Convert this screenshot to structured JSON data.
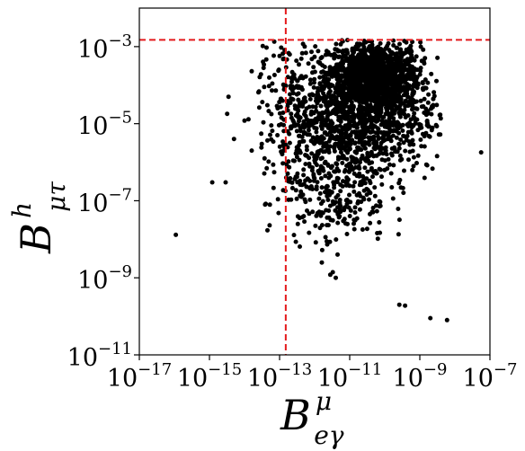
{
  "chart_data": {
    "type": "scatter",
    "x_scale": "log",
    "y_scale": "log",
    "xlim": [
      1e-17,
      1e-07
    ],
    "ylim": [
      1e-11,
      0.01
    ],
    "x_ticks": [
      {
        "base": "10",
        "exp": "−17",
        "value": 1e-17
      },
      {
        "base": "10",
        "exp": "−15",
        "value": 1e-15
      },
      {
        "base": "10",
        "exp": "−13",
        "value": 1e-13
      },
      {
        "base": "10",
        "exp": "−11",
        "value": 1e-11
      },
      {
        "base": "10",
        "exp": "−9",
        "value": 1e-09
      },
      {
        "base": "10",
        "exp": "−7",
        "value": 1e-07
      }
    ],
    "y_ticks": [
      {
        "base": "10",
        "exp": "−11",
        "value": 1e-11
      },
      {
        "base": "10",
        "exp": "−9",
        "value": 1e-09
      },
      {
        "base": "10",
        "exp": "−7",
        "value": 1e-07
      },
      {
        "base": "10",
        "exp": "−5",
        "value": 1e-05
      },
      {
        "base": "10",
        "exp": "−3",
        "value": 0.001
      }
    ],
    "xlabel": {
      "main": "B",
      "sup": "μ",
      "sub": "eγ"
    },
    "ylabel": {
      "main": "B",
      "sup": "h",
      "sub": "μτ"
    },
    "limits": {
      "x_limit": 1.5e-13,
      "y_limit": 0.0015
    },
    "limit_color": "#e41a1c",
    "point_color": "#000000",
    "grid": false,
    "outliers": [
      [
        1.1e-16,
        1.3e-08
      ],
      [
        1.2e-15,
        3e-07
      ],
      [
        2.9e-15,
        3e-07
      ],
      [
        5e-15,
        4e-06
      ],
      [
        4.5e-14,
        1.7e-08
      ],
      [
        5.2e-14,
        2.3e-08
      ],
      [
        7e-14,
        5.5e-07
      ],
      [
        3.5e-15,
        5e-05
      ],
      [
        3.2e-15,
        1.8e-05
      ],
      [
        1.3e-14,
        1.3e-05
      ],
      [
        1.6e-14,
        2e-06
      ],
      [
        1e-14,
        1.2e-05
      ],
      [
        1.6e-14,
        0.00023
      ],
      [
        2.5e-14,
        6.5e-05
      ],
      [
        3.5e-14,
        0.00028
      ],
      [
        3e-14,
        5.5e-06
      ],
      [
        2.6e-10,
        2e-10
      ],
      [
        3.8e-10,
        1.9e-10
      ],
      [
        2e-09,
        9e-11
      ],
      [
        6e-09,
        8e-11
      ],
      [
        5.6e-08,
        1.8e-06
      ],
      [
        4e-12,
        1e-09
      ],
      [
        3.3e-12,
        1.4e-09
      ],
      [
        2.8e-12,
        1.2e-09
      ],
      [
        4.5e-12,
        4e-09
      ],
      [
        1.6e-12,
        2.5e-09
      ]
    ],
    "clusters": [
      {
        "n": 1150,
        "x_log_mean": -10.3,
        "x_log_sd": 0.65,
        "y_log_mean": -3.7,
        "y_log_sd": 0.4,
        "x_log_min": -12.1,
        "x_log_max": -8.8,
        "y_log_min": -5.6,
        "y_log_max": -2.83
      },
      {
        "n": 1050,
        "x_log_mean": -10.7,
        "x_log_sd": 1.1,
        "y_log_mean": -4.8,
        "y_log_sd": 0.75,
        "x_log_min": -13.0,
        "x_log_max": -8.4,
        "y_log_min": -6.7,
        "y_log_max": -2.83
      },
      {
        "n": 320,
        "x_log_mean": -11.4,
        "x_log_sd": 0.75,
        "y_log_mean": -6.6,
        "y_log_sd": 0.75,
        "x_log_min": -13.2,
        "x_log_max": -9.3,
        "y_log_min": -8.8,
        "y_log_max": -4.8
      },
      {
        "n": 180,
        "x_log_mean": -12.6,
        "x_log_sd": 0.6,
        "y_log_mean": -4.5,
        "y_log_sd": 1.1,
        "x_log_min": -13.6,
        "x_log_max": -11.0,
        "y_log_min": -7.4,
        "y_log_max": -2.83
      }
    ]
  }
}
